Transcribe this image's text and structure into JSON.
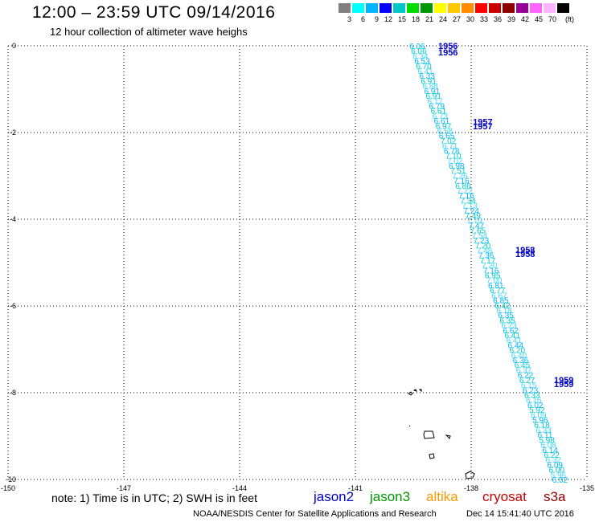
{
  "header": {
    "title": "12:00 – 23:59 UTC 09/14/2016",
    "subtitle": "12 hour collection of altimeter wave heighs"
  },
  "legend": {
    "unit": "(ft)",
    "colors": [
      "#808080",
      "#00ffff",
      "#00b4ff",
      "#0000ff",
      "#00c8c8",
      "#00dc00",
      "#009600",
      "#ffff00",
      "#ffc800",
      "#ff8c00",
      "#ff0000",
      "#c80000",
      "#8c0000",
      "#960096",
      "#ff64ff",
      "#ffb4ff",
      "#000000"
    ],
    "labels": [
      "3",
      "6",
      "9",
      "12",
      "15",
      "18",
      "21",
      "24",
      "27",
      "30",
      "33",
      "36",
      "39",
      "42",
      "45",
      "70"
    ]
  },
  "map": {
    "lon_range": [
      -150,
      -135
    ],
    "lat_range": [
      -10,
      0
    ],
    "lon_ticks": [
      "-150",
      "-147",
      "-144",
      "-141",
      "-138",
      "-135"
    ],
    "lat_ticks": [
      "0",
      "-2",
      "-4",
      "-6",
      "-8",
      "-10"
    ],
    "time_labels": [
      {
        "text": "1956",
        "lon": -138.6,
        "lat": 0.0
      },
      {
        "text": "1956",
        "lon": -138.6,
        "lat": -0.15
      },
      {
        "text": "1957",
        "lon": -137.7,
        "lat": -1.75
      },
      {
        "text": "1957",
        "lon": -137.7,
        "lat": -1.85
      },
      {
        "text": "1958",
        "lon": -136.6,
        "lat": -4.7
      },
      {
        "text": "1958",
        "lon": -136.6,
        "lat": -4.8
      },
      {
        "text": "1959",
        "lon": -135.6,
        "lat": -7.7
      },
      {
        "text": "1959",
        "lon": -135.6,
        "lat": -7.8
      }
    ],
    "track": {
      "start": {
        "lon": -139.4,
        "lat": 0.0
      },
      "end": {
        "lon": -135.7,
        "lat": -10.0
      },
      "values": [
        "6.06",
        "6.06",
        "6.34",
        "6.53",
        "6.70",
        "6.41",
        "6.33",
        "6.91",
        "6.88",
        "6.91",
        "6.91",
        "6.17",
        "6.79",
        "6.61",
        "6.73",
        "6.61",
        "6.97",
        "6.58",
        "6.65",
        "7.02",
        "6.71",
        "6.78",
        "7.10",
        "7.02",
        "6.98",
        "7.51",
        "7.26",
        "7.16",
        "6.86",
        "7.22",
        "7.16",
        "7.34",
        "7.13",
        "7.24",
        "7.49",
        "7.19",
        "7.47",
        "7.65",
        "7.54",
        "7.23",
        "7.20",
        "7.48",
        "7.36",
        "7.17",
        "7.20",
        "7.16",
        "6.95",
        "7.00",
        "6.81",
        "6.77",
        "6.67",
        "6.85",
        "6.42",
        "6.18",
        "6.35",
        "6.35",
        "6.23",
        "6.62",
        "6.41",
        "6.41",
        "6.44",
        "6.20",
        "6.40",
        "6.36",
        "6.45",
        "6.37",
        "6.22",
        "6.27",
        "6.15",
        "6.23",
        "6.33",
        "6.16",
        "6.02",
        "5.92",
        "6.09",
        "5.96",
        "6.18",
        "6.33",
        "6.11",
        "5.98",
        "6.08",
        "6.14",
        "6.22",
        "6.32",
        "6.09",
        "6.00",
        "5.96",
        "6.02"
      ]
    }
  },
  "footer": {
    "note": "note: 1) Time is in UTC; 2) SWH is in feet",
    "satellites": [
      {
        "name": "jason2",
        "color": "#0000c8"
      },
      {
        "name": "jason3",
        "color": "#009600"
      },
      {
        "name": "altika",
        "color": "#ff9600"
      },
      {
        "name": "cryosat",
        "color": "#c80000"
      },
      {
        "name": "s3a",
        "color": "#960000"
      }
    ],
    "credit": "NOAA/NESDIS Center for Satellite Applications and Research",
    "timestamp": "Dec 14 15:41:40 UTC 2016"
  }
}
